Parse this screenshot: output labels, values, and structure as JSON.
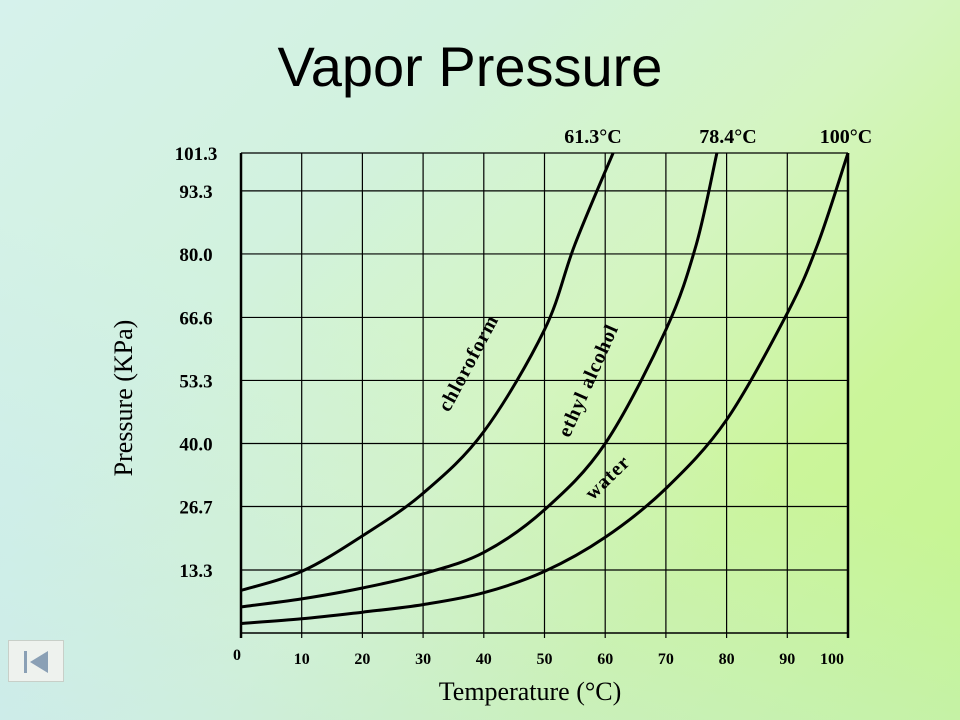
{
  "title": "Vapor Pressure",
  "nav": {
    "back_icon": "first-slide-icon"
  },
  "chart_data": {
    "type": "line",
    "title": "Vapor Pressure",
    "xlabel": "Temperature (°C)",
    "ylabel": "Pressure (KPa)",
    "xlim": [
      0,
      100
    ],
    "ylim": [
      0,
      101.3
    ],
    "grid": true,
    "x_ticks": [
      "0",
      "10",
      "20",
      "30",
      "40",
      "50",
      "60",
      "70",
      "80",
      "90",
      "100"
    ],
    "y_ticks": [
      "13.3",
      "26.7",
      "40.0",
      "53.3",
      "66.6",
      "80.0",
      "93.3",
      "101.3"
    ],
    "y_tick_values": [
      13.3,
      26.7,
      40.0,
      53.3,
      66.6,
      80.0,
      93.3,
      101.3
    ],
    "series": [
      {
        "name": "chloroform",
        "boiling_point_label": "61.3°C",
        "points": [
          [
            0,
            9
          ],
          [
            10,
            13
          ],
          [
            20,
            20.5
          ],
          [
            30,
            29.5
          ],
          [
            40,
            42.5
          ],
          [
            50,
            64
          ],
          [
            55,
            82
          ],
          [
            61.3,
            101.3
          ]
        ]
      },
      {
        "name": "ethyl alcohol",
        "boiling_point_label": "78.4°C",
        "points": [
          [
            0,
            5.5
          ],
          [
            10,
            7.2
          ],
          [
            20,
            9.5
          ],
          [
            30,
            12.5
          ],
          [
            40,
            17
          ],
          [
            50,
            26
          ],
          [
            60,
            40
          ],
          [
            70,
            64
          ],
          [
            75,
            82
          ],
          [
            78.4,
            101.3
          ]
        ]
      },
      {
        "name": "water",
        "boiling_point_label": "100°C",
        "points": [
          [
            0,
            2
          ],
          [
            10,
            3
          ],
          [
            20,
            4.4
          ],
          [
            30,
            6
          ],
          [
            40,
            8.5
          ],
          [
            50,
            13
          ],
          [
            60,
            20.2
          ],
          [
            70,
            30.5
          ],
          [
            80,
            45
          ],
          [
            90,
            67.5
          ],
          [
            95,
            82
          ],
          [
            100,
            101.3
          ]
        ]
      }
    ]
  }
}
